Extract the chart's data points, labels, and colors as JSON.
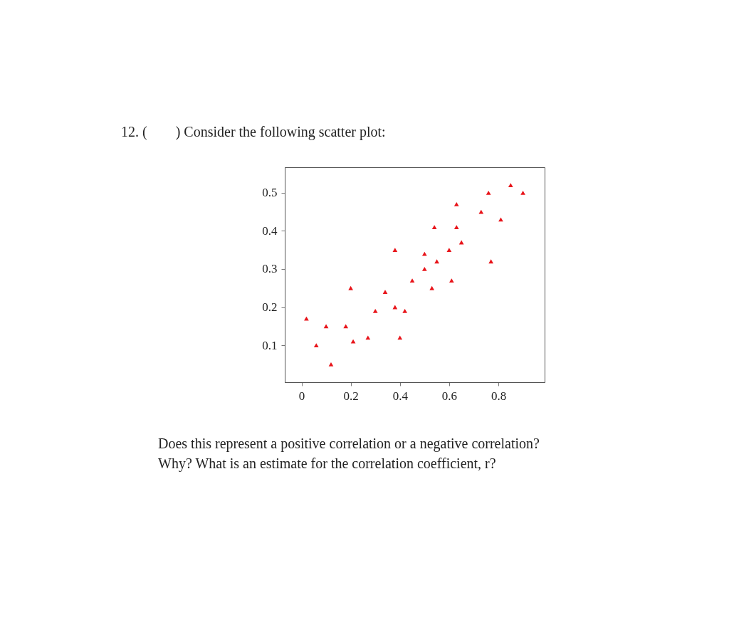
{
  "chart_data": {
    "type": "scatter",
    "title": "12. (        ) Consider the following scatter plot:",
    "annotations": [
      "Does this represent a positive correlation or a negative correlation?",
      "Why? What is an estimate for the correlation coefficient, r?"
    ],
    "x": [
      0.02,
      0.06,
      0.1,
      0.12,
      0.18,
      0.2,
      0.21,
      0.27,
      0.3,
      0.34,
      0.38,
      0.38,
      0.4,
      0.42,
      0.45,
      0.5,
      0.5,
      0.53,
      0.54,
      0.55,
      0.6,
      0.61,
      0.63,
      0.63,
      0.65,
      0.73,
      0.76,
      0.77,
      0.81,
      0.85,
      0.9
    ],
    "series": [
      {
        "color": "#e8141a",
        "values": [
          0.17,
          0.1,
          0.15,
          0.05,
          0.15,
          0.25,
          0.11,
          0.12,
          0.19,
          0.24,
          0.35,
          0.2,
          0.12,
          0.19,
          0.27,
          0.34,
          0.3,
          0.25,
          0.41,
          0.32,
          0.35,
          0.27,
          0.47,
          0.41,
          0.37,
          0.45,
          0.5,
          0.32,
          0.43,
          0.52,
          0.5
        ]
      }
    ],
    "xlim": [
      -0.068,
      0.988
    ],
    "ylim": [
      0.003,
      0.567
    ],
    "xticks": [
      0,
      0.2,
      0.4,
      0.6,
      0.8
    ],
    "yticks": [
      0.1,
      0.2,
      0.3,
      0.4,
      0.5
    ],
    "marker": "triangle",
    "grid": false
  }
}
